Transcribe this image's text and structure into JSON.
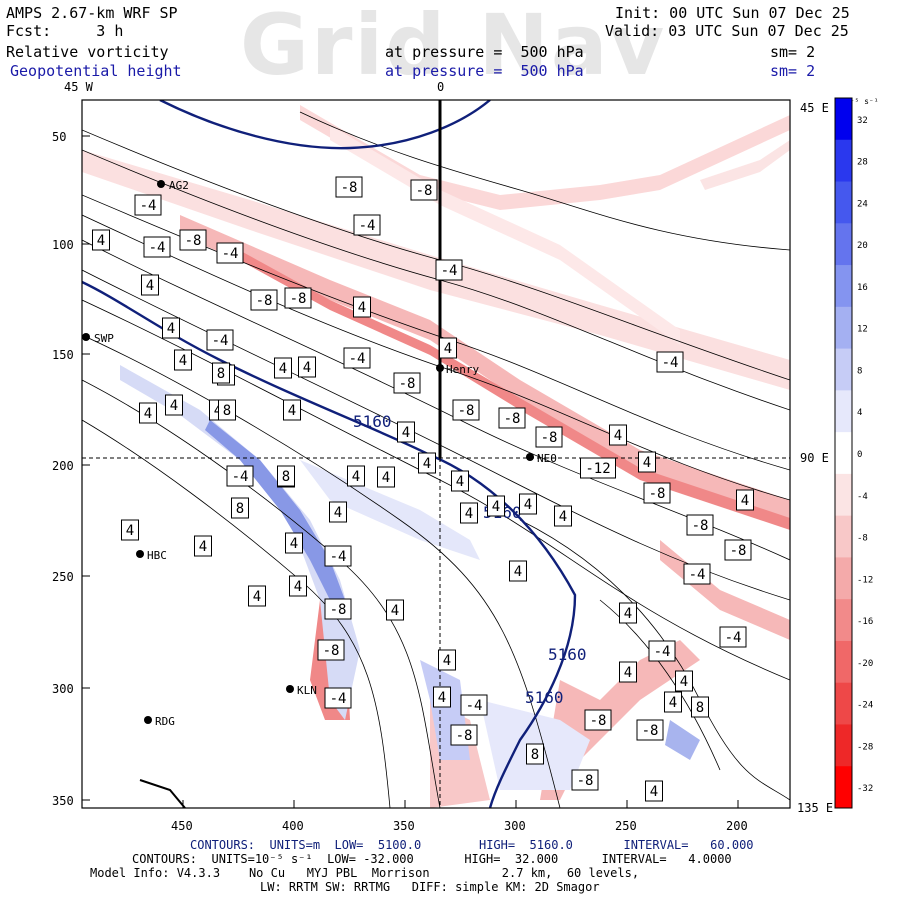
{
  "watermark": "Grid Nav",
  "header": {
    "model": "AMPS 2.67-km WRF SP",
    "fcst": "Fcst:     3 h",
    "field1": "Relative vorticity",
    "field2": "Geopotential height",
    "pressure1": "at pressure =  500 hPa",
    "pressure2": "at pressure =  500 hPa",
    "init": "Init: 00 UTC Sun 07 Dec 25",
    "valid": "Valid: 03 UTC Sun 07 Dec 25",
    "sm1": "sm= 2",
    "sm2": "sm= 2"
  },
  "top_labels": {
    "left": "45 W",
    "center": "0"
  },
  "right_labels": {
    "top": "45 E",
    "mid": "90 E",
    "bottom": "135 E"
  },
  "y_ticks": [
    "50",
    "100",
    "150",
    "200",
    "250",
    "300",
    "350"
  ],
  "x_ticks": [
    "450",
    "400",
    "350",
    "300",
    "250",
    "200"
  ],
  "stations": [
    "AG2",
    "SWP",
    "Henry",
    "NEO",
    "HBC",
    "KLN",
    "RDG"
  ],
  "colorbar": {
    "unit": "10⁻⁵ s⁻¹",
    "labels": [
      "32",
      "28",
      "24",
      "20",
      "16",
      "12",
      "8",
      "4",
      "0",
      "-4",
      "-8",
      "-12",
      "-16",
      "-20",
      "-24",
      "-28",
      "-32"
    ],
    "colors": [
      "#0000ee",
      "#2a38ee",
      "#4558ee",
      "#6474ee",
      "#8494f0",
      "#a4b0f2",
      "#c6ccf6",
      "#e6e8fb",
      "#ffffff",
      "#fbe4e4",
      "#f8c8c8",
      "#f4aaaa",
      "#f28a8a",
      "#f06868",
      "#ee4848",
      "#ee2828",
      "#ff0000"
    ]
  },
  "height_labels": [
    "5160",
    "5160",
    "5160",
    "5160"
  ],
  "vort_labels": [
    "4",
    "-4",
    "-8",
    "8",
    "-12"
  ],
  "footer": {
    "line1": "CONTOURS:  UNITS=m  LOW=  5100.0        HIGH=  5160.0       INTERVAL=   60.000",
    "line2": "CONTOURS:  UNITS=10⁻⁵ s⁻¹  LOW= -32.000       HIGH=  32.000      INTERVAL=   4.0000",
    "line3": "Model Info: V4.3.3    No Cu   MYJ PBL  Morrison          2.7 km,  60 levels,",
    "line4": "LW: RRTM SW: RRTMG   DIFF: simple KM: 2D Smagor"
  },
  "colors": {
    "height_contour": "#10207a",
    "neg_fill": "#f4a8a8",
    "pos_fill": "#a8b4ee"
  }
}
